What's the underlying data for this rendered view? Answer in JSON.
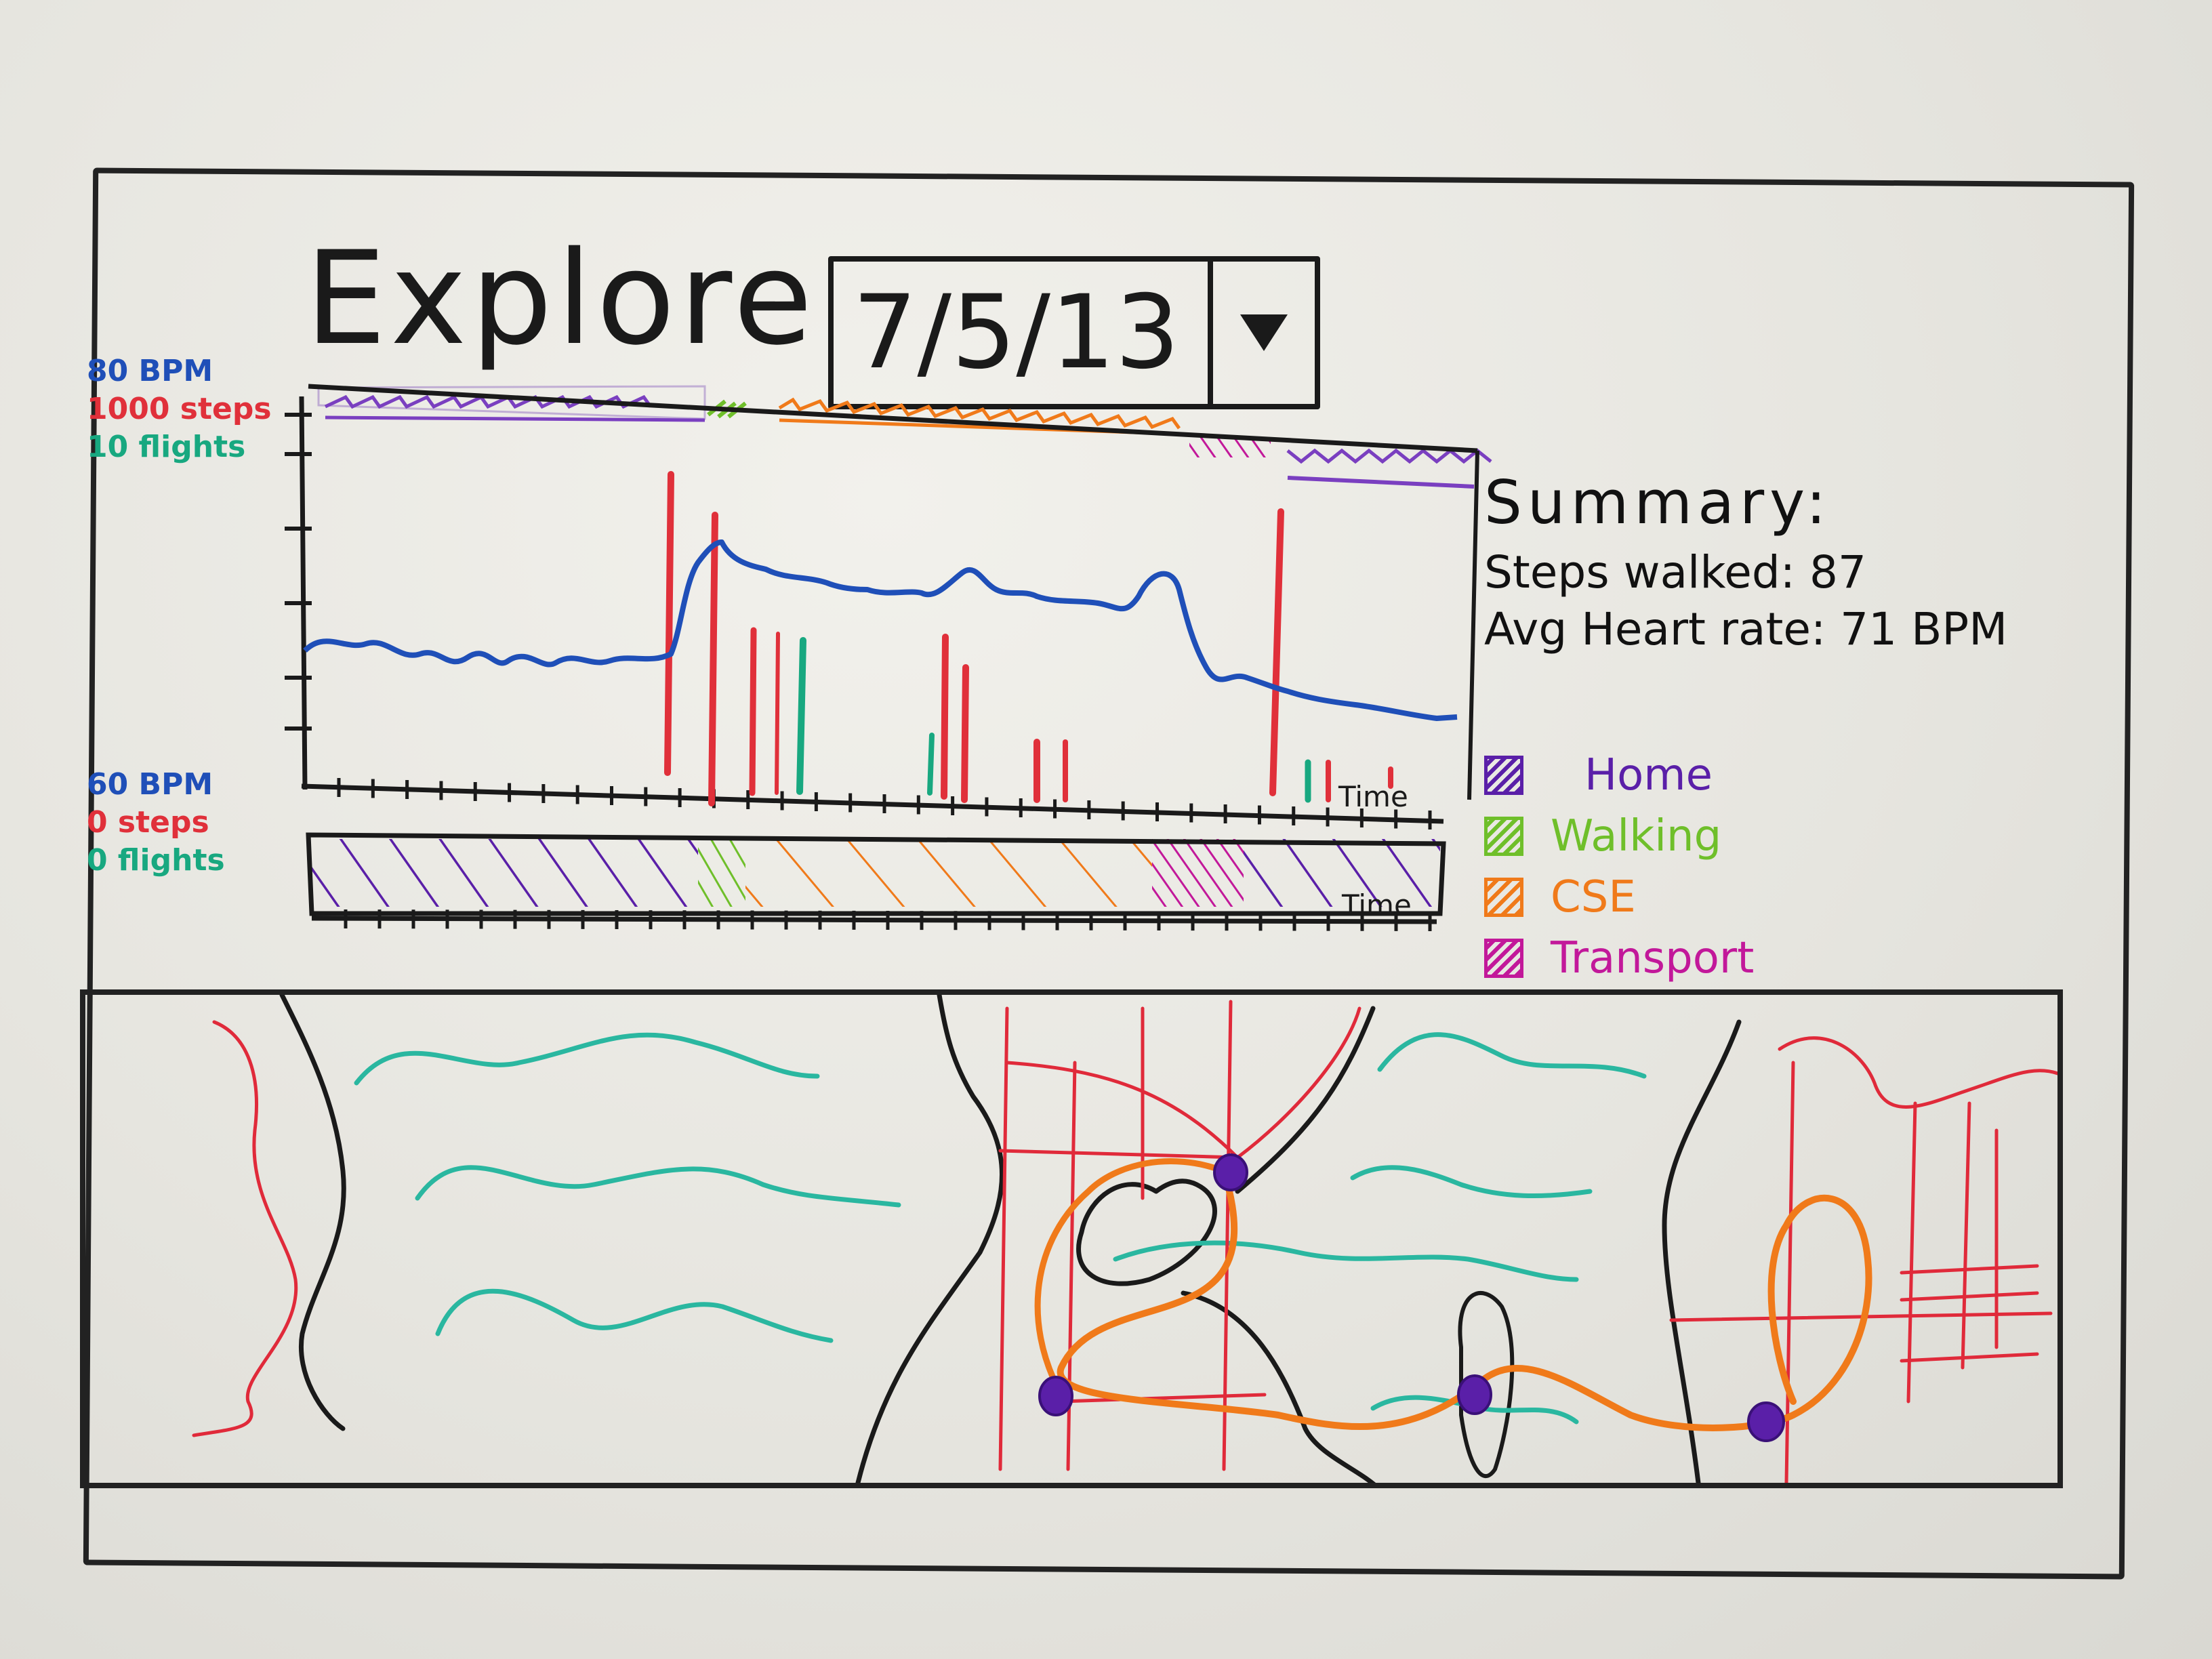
{
  "page": {
    "title": "Explore"
  },
  "date_select": {
    "value": "7/5/13",
    "icon": "triangle-down-icon"
  },
  "axis_top": {
    "heart": "80 BPM",
    "steps": "1000 steps",
    "flights": "10 flights"
  },
  "axis_bottom": {
    "heart": "60 BPM",
    "steps": "0 steps",
    "flights": "0 flights"
  },
  "chart": {
    "xlabel": "Time"
  },
  "timeline": {
    "xlabel": "Time"
  },
  "summary": {
    "title": "Summary:",
    "steps_label": "Steps walked:",
    "steps_value": "87",
    "heart_label": "Avg Heart rate:",
    "heart_value": "71 BPM"
  },
  "legend": [
    {
      "label": "Home",
      "color": "#5a1fa8"
    },
    {
      "label": "Walking",
      "color": "#6fbf2a"
    },
    {
      "label": "CSE",
      "color": "#f07a1a"
    },
    {
      "label": "Transport",
      "color": "#c2189a"
    }
  ],
  "colors": {
    "heart_rate": "#1f4fb8",
    "steps": "#e0303a",
    "flights": "#18a880",
    "water": "#2ab7a0",
    "road": "#e02a3a",
    "route": "#f07a1a",
    "stop": "#5a1fa8",
    "ink": "#1a1a1a"
  }
}
